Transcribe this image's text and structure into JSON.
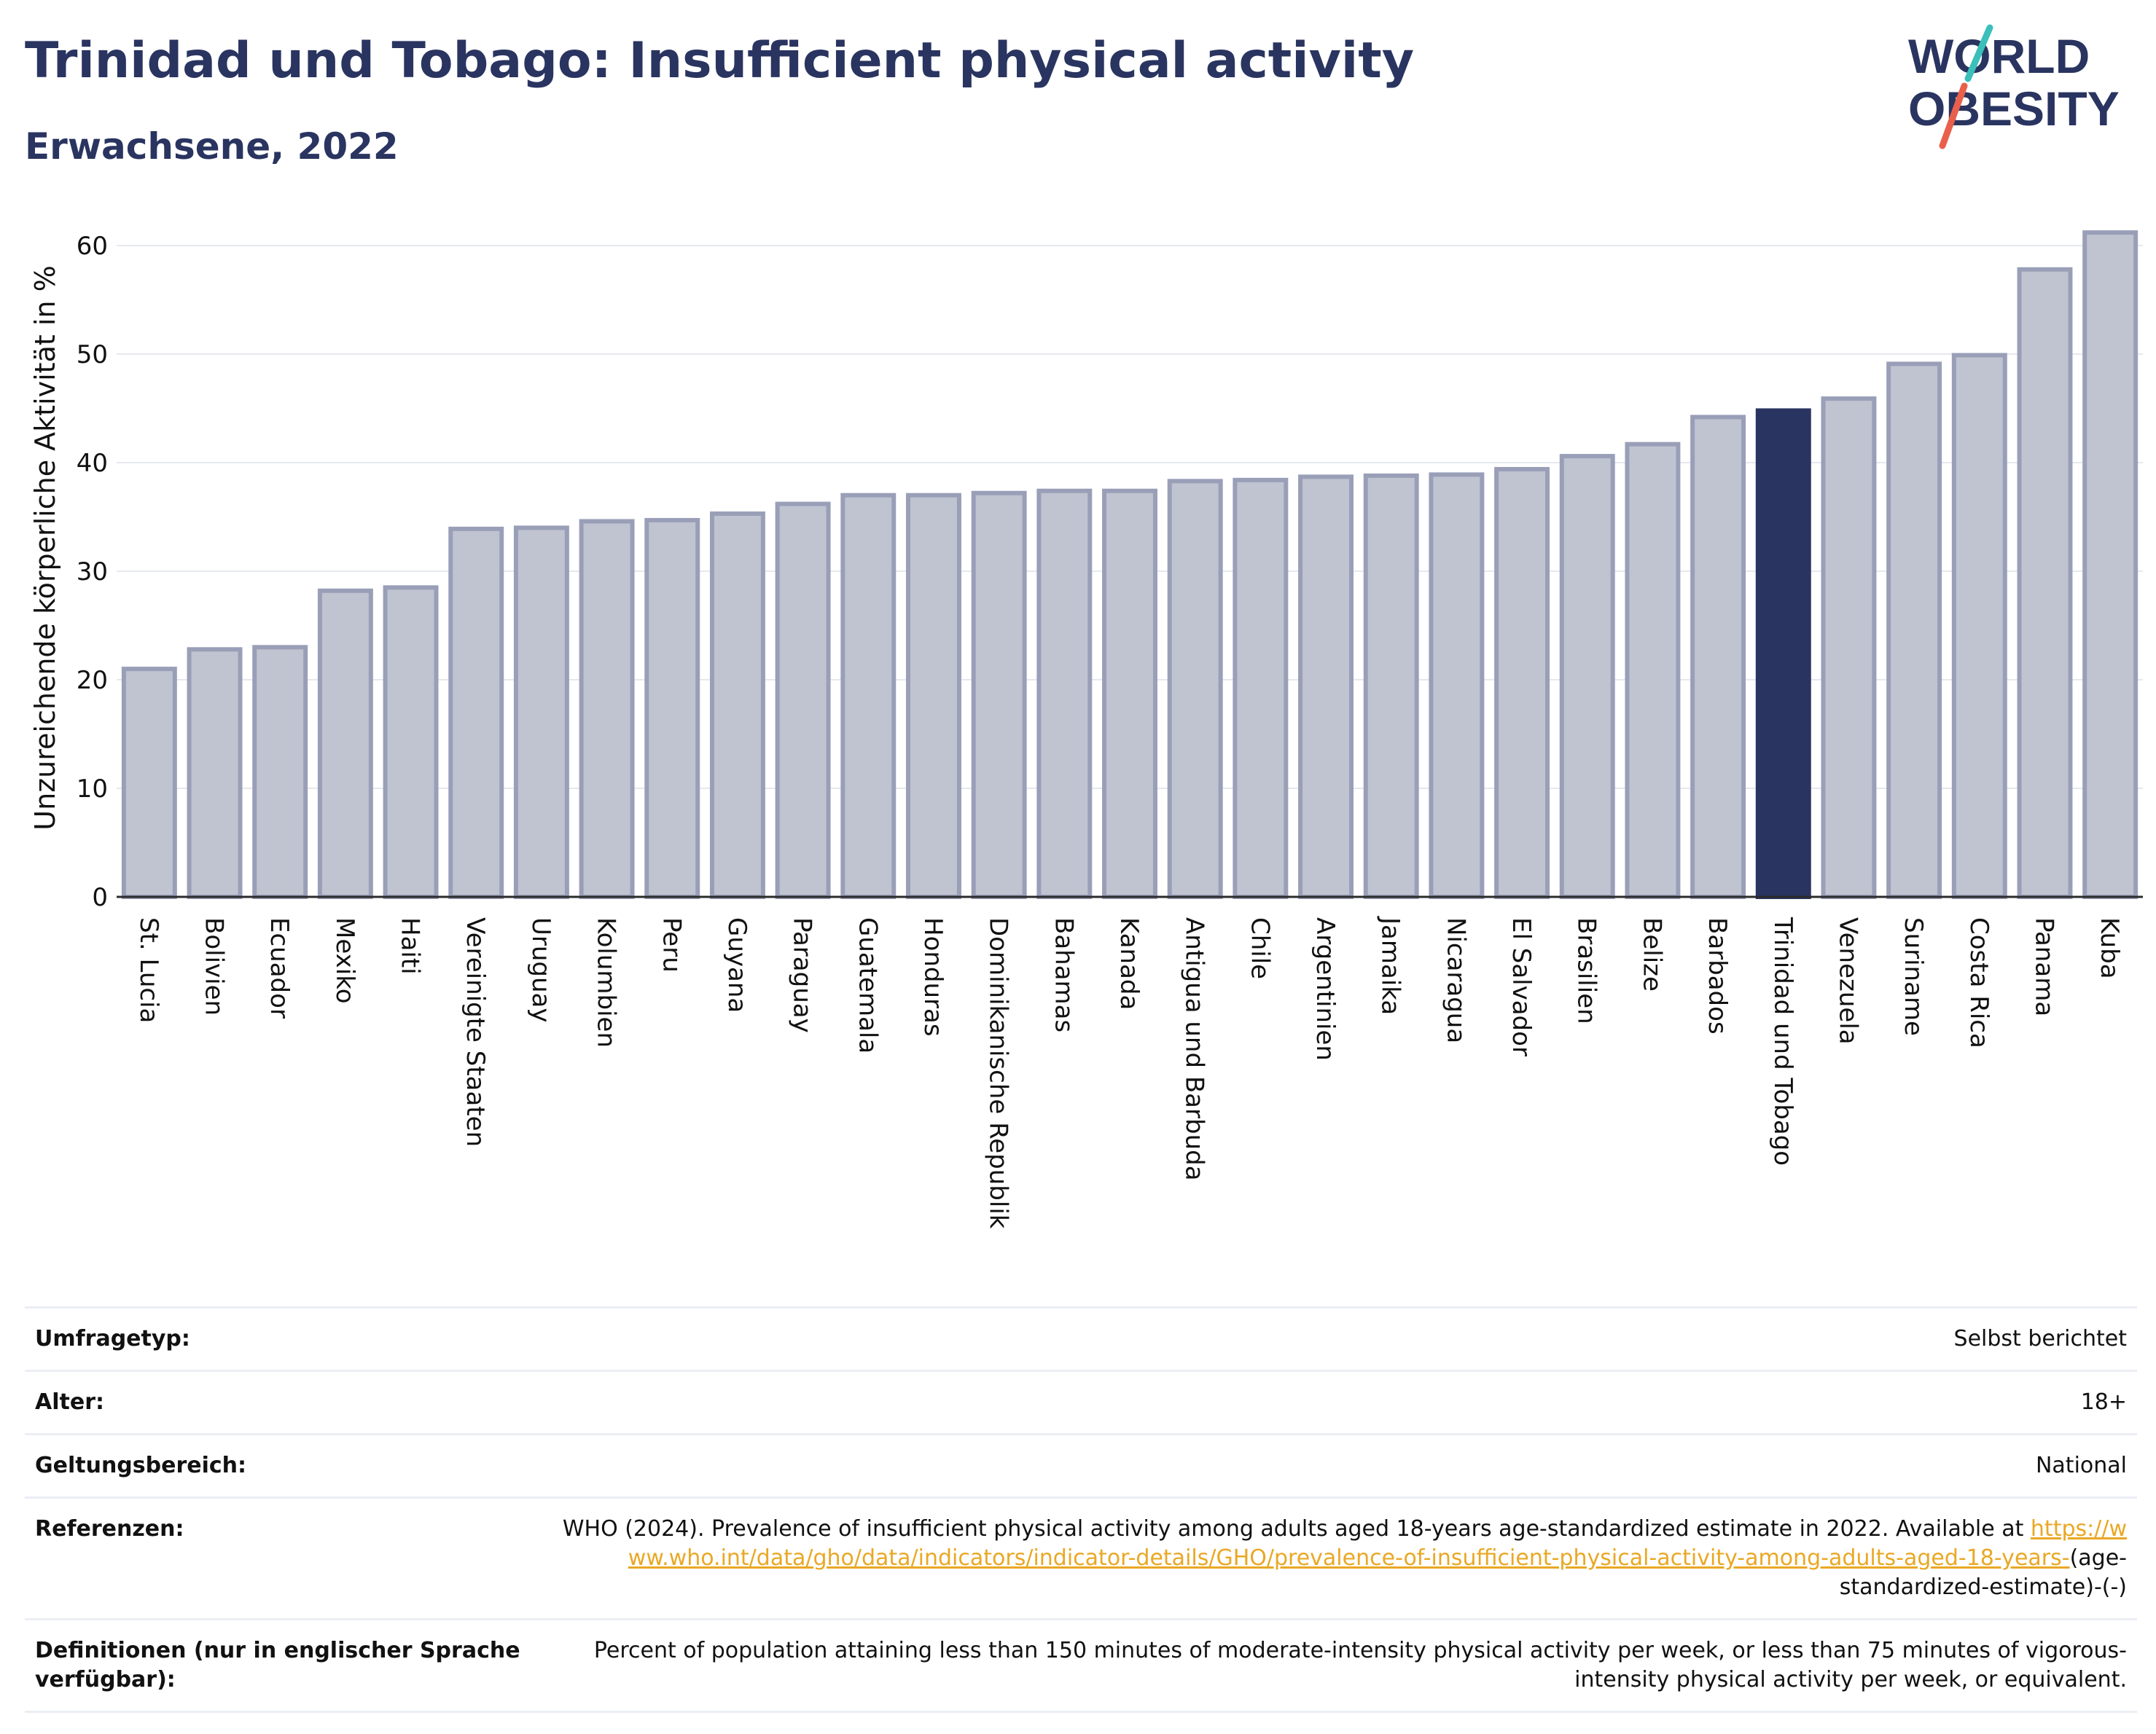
{
  "header": {
    "title": "Trinidad und Tobago: Insufficient physical activity",
    "subtitle": "Erwachsene, 2022",
    "logo_line1": "WORLD",
    "logo_line2": "OBESITY"
  },
  "chart_data": {
    "type": "bar",
    "ylabel": "Unzureichende körperliche Aktivität in %",
    "ylim": [
      0,
      63
    ],
    "yticks": [
      0,
      10,
      20,
      30,
      40,
      50,
      60
    ],
    "grid": true,
    "highlight": "Trinidad und Tobago",
    "colors": {
      "bar": "#c0c3d0",
      "bar_edge": "#9a9fb8",
      "highlight": "#2a3460"
    },
    "categories": [
      "St. Lucia",
      "Bolivien",
      "Ecuador",
      "Mexiko",
      "Haiti",
      "Vereinigte Staaten",
      "Uruguay",
      "Kolumbien",
      "Peru",
      "Guyana",
      "Paraguay",
      "Guatemala",
      "Honduras",
      "Dominikanische Republik",
      "Bahamas",
      "Kanada",
      "Antigua und Barbuda",
      "Chile",
      "Argentinien",
      "Jamaika",
      "Nicaragua",
      "El Salvador",
      "Brasilien",
      "Belize",
      "Barbados",
      "Trinidad und Tobago",
      "Venezuela",
      "Suriname",
      "Costa Rica",
      "Panama",
      "Kuba"
    ],
    "values": [
      21.0,
      22.8,
      23.0,
      28.2,
      28.5,
      33.9,
      34.0,
      34.6,
      34.7,
      35.3,
      36.2,
      37.0,
      37.0,
      37.2,
      37.4,
      37.4,
      38.3,
      38.4,
      38.7,
      38.8,
      38.9,
      39.4,
      40.6,
      41.7,
      44.2,
      44.8,
      45.9,
      49.1,
      49.9,
      57.8,
      61.2
    ]
  },
  "meta": {
    "survey_label": "Umfragetyp:",
    "survey_value": "Selbst berichtet",
    "age_label": "Alter:",
    "age_value": "18+",
    "scope_label": "Geltungsbereich:",
    "scope_value": "National",
    "ref_label": "Referenzen:",
    "ref_text": "WHO (2024). Prevalence of insufficient physical activity among adults aged 18-years age-standardized estimate in 2022. Available at",
    "ref_link": "https://www.who.int/data/gho/data/indicators/indicator-details/GHO/prevalence-of-insufficient-physical-activity-among-adults-aged-18-years-",
    "ref_suffix": "(age-standardized-estimate)-(-)",
    "def_label": "Definitionen (nur in englischer Sprache verfügbar):",
    "def_text": "Percent of population attaining less than 150 minutes of moderate-intensity physical activity per week, or less than 75 minutes of vigorous-intensity physical activity per week, or equivalent."
  }
}
